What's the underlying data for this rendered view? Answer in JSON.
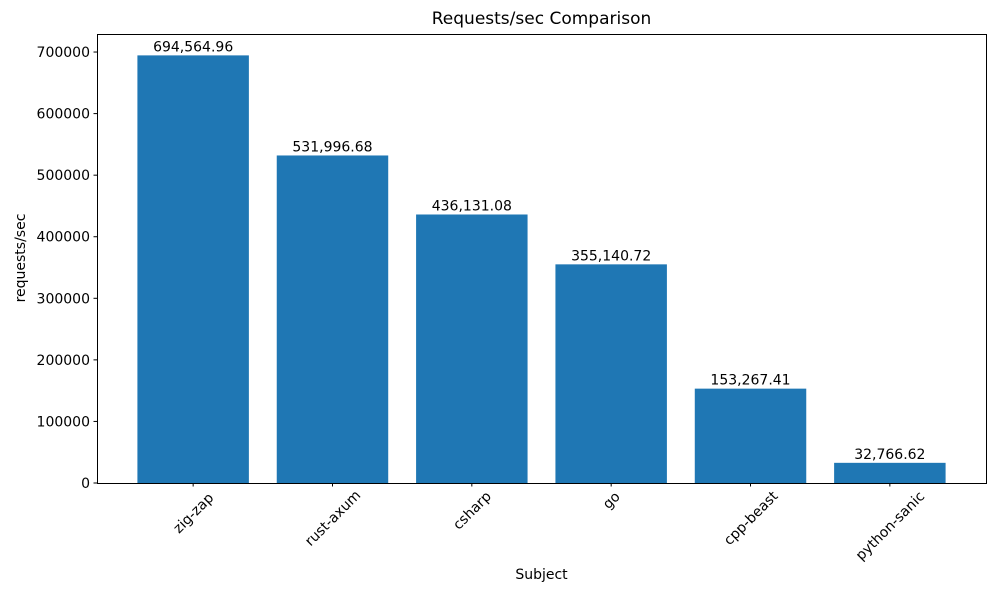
{
  "chart_data": {
    "type": "bar",
    "title": "Requests/sec Comparison",
    "xlabel": "Subject",
    "ylabel": "requests/sec",
    "categories": [
      "zig-zap",
      "rust-axum",
      "csharp",
      "go",
      "cpp-beast",
      "python-sanic"
    ],
    "values": [
      694564.96,
      531996.68,
      436131.08,
      355140.72,
      153267.41,
      32766.62
    ],
    "value_labels": [
      "694,564.96",
      "531,996.68",
      "436,131.08",
      "355,140.72",
      "153,267.41",
      "32,766.62"
    ],
    "yticks": [
      0,
      100000,
      200000,
      300000,
      400000,
      500000,
      600000,
      700000
    ],
    "ylim": [
      0,
      729293
    ],
    "bar_color": "#1f77b4",
    "text_color": "#000000",
    "axis_color": "#000000",
    "grid": false,
    "legend": "none"
  }
}
